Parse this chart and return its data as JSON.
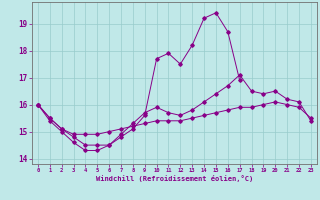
{
  "xlabel": "Windchill (Refroidissement éolien,°C)",
  "background_color": "#c0e8e8",
  "grid_color": "#98cccc",
  "line_color": "#880088",
  "hours": [
    0,
    1,
    2,
    3,
    4,
    5,
    6,
    7,
    8,
    9,
    10,
    11,
    12,
    13,
    14,
    15,
    16,
    17,
    18,
    19,
    20,
    21,
    22,
    23
  ],
  "line1": [
    16.0,
    15.5,
    15.1,
    14.9,
    14.9,
    14.9,
    15.0,
    15.1,
    15.2,
    15.3,
    15.4,
    15.4,
    15.4,
    15.5,
    15.6,
    15.7,
    15.8,
    15.9,
    15.9,
    16.0,
    16.1,
    16.0,
    15.9,
    15.5
  ],
  "line2": [
    16.0,
    15.5,
    15.1,
    14.8,
    14.5,
    14.5,
    14.5,
    14.8,
    15.1,
    15.6,
    17.7,
    17.9,
    17.5,
    18.2,
    19.2,
    19.4,
    18.7,
    16.9,
    null,
    null,
    null,
    null,
    null,
    null
  ],
  "line3": [
    16.0,
    15.4,
    15.0,
    14.6,
    14.3,
    14.3,
    14.5,
    14.9,
    15.3,
    15.7,
    15.9,
    15.7,
    15.6,
    15.8,
    16.1,
    16.4,
    16.7,
    17.1,
    16.5,
    16.4,
    16.5,
    16.2,
    16.1,
    15.4
  ],
  "ylim": [
    13.8,
    19.8
  ],
  "yticks": [
    14,
    15,
    16,
    17,
    18,
    19
  ],
  "xlim": [
    -0.5,
    23.5
  ],
  "xticks": [
    0,
    1,
    2,
    3,
    4,
    5,
    6,
    7,
    8,
    9,
    10,
    11,
    12,
    13,
    14,
    15,
    16,
    17,
    18,
    19,
    20,
    21,
    22,
    23
  ],
  "xtick_labels": [
    "0",
    "1",
    "2",
    "3",
    "4",
    "5",
    "6",
    "7",
    "8",
    "9",
    "10",
    "11",
    "12",
    "13",
    "14",
    "15",
    "16",
    "17",
    "18",
    "19",
    "20",
    "21",
    "22",
    "23"
  ]
}
